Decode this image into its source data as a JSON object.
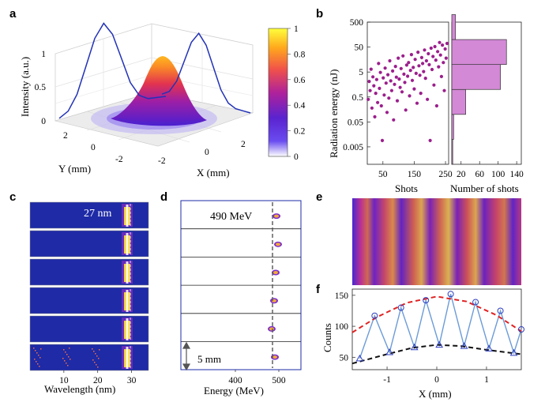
{
  "panels": {
    "a": {
      "label": "a",
      "zlabel": "Intensity (a.u.)",
      "xlabel": "X (mm)",
      "ylabel": "Y (mm)",
      "zticks": [
        "0",
        "0.5",
        "1"
      ],
      "xticks": [
        "-2",
        "0",
        "2"
      ],
      "yticks": [
        "2",
        "0",
        "-2"
      ],
      "colorbar_ticks": [
        "0",
        "0.2",
        "0.4",
        "0.6",
        "0.8",
        "1"
      ]
    },
    "b": {
      "label": "b",
      "ylabel": "Radiation energy (nJ)",
      "xlabel_left": "Shots",
      "xlabel_right": "Number of shots",
      "yticks": [
        "500",
        "50",
        "5",
        "0.5",
        "0.05",
        "0.005"
      ],
      "xticks_left": [
        "50",
        "150",
        "250"
      ],
      "xticks_right": [
        "20",
        "60",
        "100",
        "140"
      ]
    },
    "c": {
      "label": "c",
      "annotation": "27 nm",
      "xlabel": "Wavelength (nm)",
      "xticks": [
        "10",
        "20",
        "30"
      ]
    },
    "d": {
      "label": "d",
      "annotation": "490 MeV",
      "scale_label": "5 mm",
      "xlabel": "Energy (MeV)",
      "xticks": [
        "400",
        "500"
      ]
    },
    "e": {
      "label": "e"
    },
    "f": {
      "label": "f",
      "ylabel": "Counts",
      "xlabel": "X (mm)",
      "yticks": [
        "50",
        "100",
        "150"
      ],
      "xticks": [
        "-1",
        "0",
        "1"
      ]
    }
  },
  "colors": {
    "hist_fill": "#d389d6",
    "scatter": "#9b1f8c",
    "blue_line": "#2f3fbf",
    "measured_line": "#6b9bd8",
    "envelope_max": "#e02222",
    "envelope_min": "#111111",
    "detector_bg": "#1e2aa6"
  },
  "chart_data": [
    {
      "panel": "b",
      "type": "scatter",
      "xlabel": "Shots",
      "ylabel": "Radiation energy (nJ)",
      "xlim": [
        0,
        260
      ],
      "ylim": [
        0.001,
        500
      ],
      "yscale": "log",
      "points_x": [
        3,
        6,
        9,
        12,
        15,
        18,
        21,
        24,
        27,
        30,
        33,
        36,
        39,
        42,
        45,
        48,
        51,
        54,
        57,
        60,
        63,
        66,
        69,
        72,
        75,
        78,
        81,
        84,
        87,
        90,
        93,
        96,
        99,
        102,
        105,
        108,
        111,
        114,
        117,
        120,
        123,
        126,
        129,
        132,
        135,
        138,
        141,
        144,
        147,
        150,
        153,
        156,
        159,
        162,
        165,
        168,
        171,
        174,
        177,
        180,
        183,
        186,
        189,
        192,
        195,
        198,
        201,
        204,
        207,
        210,
        213,
        216,
        219,
        222,
        225,
        228,
        231,
        234,
        237,
        240,
        243,
        246,
        249,
        252,
        255
      ],
      "points_y": [
        0.4,
        2.1,
        0.9,
        6.5,
        0.18,
        3.2,
        1.4,
        0.08,
        0.7,
        2.5,
        0.3,
        11,
        1.1,
        4.8,
        0.22,
        0.009,
        2.9,
        0.6,
        7.2,
        1.8,
        0.12,
        3.9,
        0.45,
        14,
        2.2,
        0.9,
        5.5,
        0.06,
        1.6,
        8.4,
        3.1,
        0.35,
        18,
        2.6,
        1.2,
        6.9,
        0.8,
        22,
        4.1,
        1.9,
        0.15,
        9.5,
        3.4,
        12,
        0.55,
        5.8,
        25,
        2.3,
        7.6,
        1.05,
        16,
        4.4,
        0.28,
        31,
        8.9,
        3.7,
        0.7,
        19,
        11,
        5.2,
        38,
        2.8,
        14,
        0.4,
        27,
        9.8,
        0.009,
        45,
        6.3,
        21,
        1.5,
        52,
        15,
        0.22,
        33,
        8.1,
        76,
        24,
        3.3,
        60,
        12,
        0.9,
        42,
        18,
        70
      ]
    },
    {
      "panel": "b",
      "type": "bar",
      "orientation": "horizontal",
      "xlabel": "Number of shots",
      "bin_edges": [
        0.001,
        0.01,
        0.1,
        1,
        10,
        100,
        1000
      ],
      "values": [
        2,
        4,
        30,
        105,
        118,
        8
      ],
      "xlim": [
        0,
        150
      ]
    },
    {
      "panel": "f",
      "type": "line",
      "xlabel": "X (mm)",
      "ylabel": "Counts",
      "xlim": [
        -1.7,
        1.7
      ],
      "ylim": [
        30,
        160
      ],
      "series": [
        {
          "marker": "triangle",
          "x": [
            -1.55,
            -0.95,
            -0.45,
            0.05,
            0.55,
            1.05,
            1.55
          ],
          "y": [
            48,
            58,
            66,
            70,
            68,
            64,
            57
          ]
        },
        {
          "marker": "circle",
          "x": [
            -1.25,
            -0.72,
            -0.22,
            0.28,
            0.78,
            1.28,
            1.7
          ],
          "y": [
            117,
            130,
            142,
            152,
            139,
            125,
            95
          ]
        },
        {
          "marker": "none",
          "style": "dashed",
          "x": [
            -1.7,
            -1.2,
            -0.6,
            0,
            0.6,
            1.2,
            1.7
          ],
          "y": [
            90,
            115,
            138,
            148,
            140,
            118,
            92
          ]
        },
        {
          "marker": "none",
          "style": "dashed",
          "x": [
            -1.7,
            -1.0,
            -0.5,
            0,
            0.5,
            1.0,
            1.7
          ],
          "y": [
            40,
            55,
            65,
            70,
            68,
            62,
            55
          ]
        }
      ]
    },
    {
      "panel": "a",
      "type": "line",
      "note": "3D Gaussian spot with projection curves",
      "series": [
        {
          "x": [
            -3,
            -2.5,
            -2,
            -1.5,
            -1,
            -0.5,
            0,
            0.5,
            1,
            1.5,
            2,
            2.5,
            3
          ],
          "y": [
            0.02,
            0.08,
            0.25,
            0.55,
            0.85,
            1.0,
            0.85,
            0.55,
            0.25,
            0.08,
            0.02,
            0.01,
            0.0
          ]
        }
      ]
    }
  ]
}
